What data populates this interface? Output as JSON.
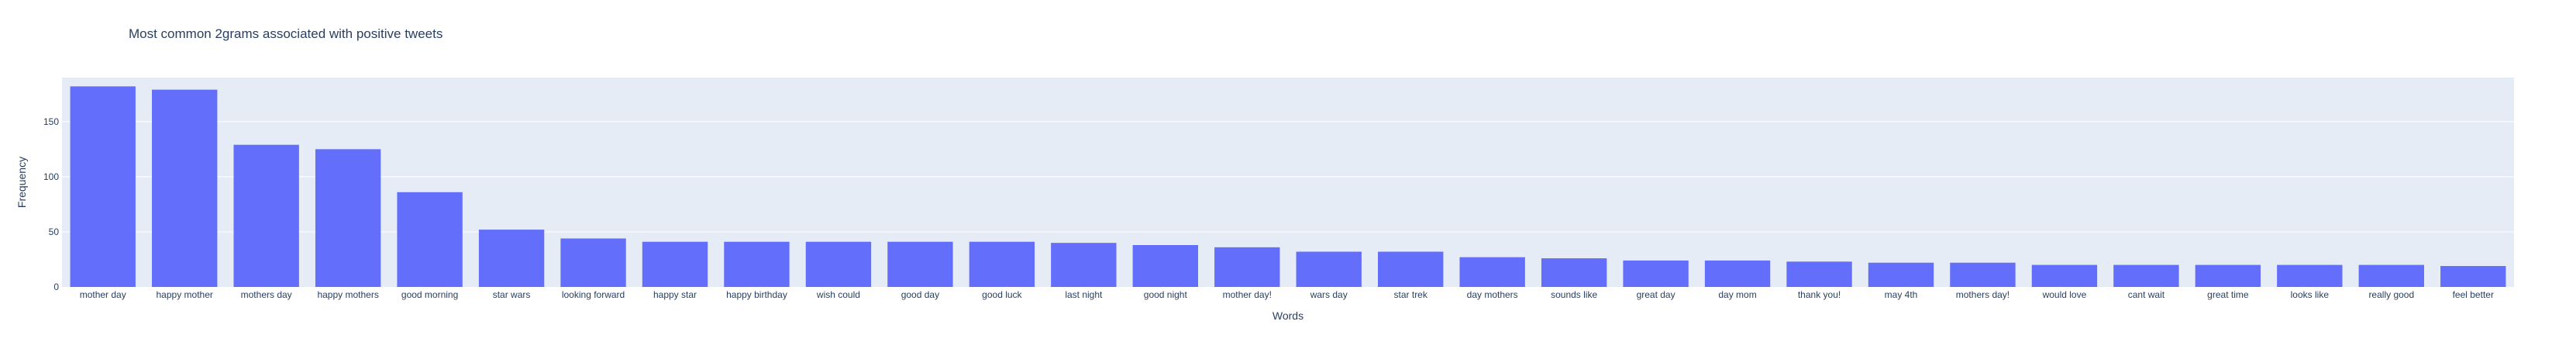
{
  "colors": {
    "plot_background": "#E5ECF6",
    "gridline": "#FFFFFF",
    "bar": "#636EFA",
    "text": "#2A3F5F"
  },
  "chart_data": {
    "type": "bar",
    "title": "Most common 2grams associated with positive tweets",
    "xlabel": "Words",
    "ylabel": "Frequency",
    "ylim": [
      0,
      190
    ],
    "yticks": [
      0,
      50,
      100,
      150
    ],
    "grid": true,
    "categories": [
      "mother day",
      "happy mother",
      "mothers day",
      "happy mothers",
      "good morning",
      "star wars",
      "looking forward",
      "happy star",
      "happy birthday",
      "wish could",
      "good day",
      "good luck",
      "last night",
      "good night",
      "mother day!",
      "wars day",
      "star trek",
      "day mothers",
      "sounds like",
      "great day",
      "day mom",
      "thank you!",
      "may 4th",
      "mothers day!",
      "would love",
      "cant wait",
      "great time",
      "looks like",
      "really good",
      "feel better"
    ],
    "values": [
      182,
      179,
      129,
      125,
      86,
      52,
      44,
      41,
      41,
      41,
      41,
      41,
      40,
      38,
      36,
      32,
      32,
      27,
      26,
      24,
      24,
      23,
      22,
      22,
      20,
      20,
      20,
      20,
      20,
      19
    ]
  }
}
